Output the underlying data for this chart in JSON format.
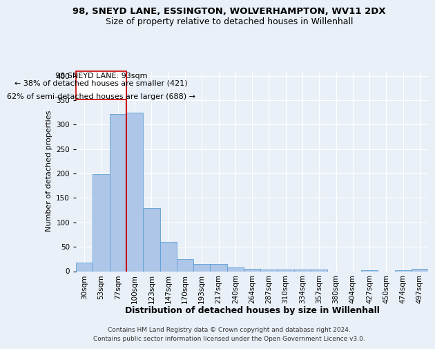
{
  "title1": "98, SNEYD LANE, ESSINGTON, WOLVERHAMPTON, WV11 2DX",
  "title2": "Size of property relative to detached houses in Willenhall",
  "xlabel": "Distribution of detached houses by size in Willenhall",
  "ylabel": "Number of detached properties",
  "bar_labels": [
    "30sqm",
    "53sqm",
    "77sqm",
    "100sqm",
    "123sqm",
    "147sqm",
    "170sqm",
    "193sqm",
    "217sqm",
    "240sqm",
    "264sqm",
    "287sqm",
    "310sqm",
    "334sqm",
    "357sqm",
    "380sqm",
    "404sqm",
    "427sqm",
    "450sqm",
    "474sqm",
    "497sqm"
  ],
  "bar_values": [
    17,
    198,
    321,
    325,
    129,
    60,
    25,
    15,
    15,
    8,
    5,
    4,
    4,
    4,
    3,
    0,
    0,
    2,
    0,
    2,
    5
  ],
  "bar_color": "#aec6e8",
  "bar_edgecolor": "#5a9fd4",
  "property_label": "98 SNEYD LANE: 93sqm",
  "annotation_line1": "← 38% of detached houses are smaller (421)",
  "annotation_line2": "62% of semi-detached houses are larger (688) →",
  "vline_x": 2.5,
  "ylim": [
    0,
    410
  ],
  "yticks": [
    0,
    50,
    100,
    150,
    200,
    250,
    300,
    350,
    400
  ],
  "footer_line1": "Contains HM Land Registry data © Crown copyright and database right 2024.",
  "footer_line2": "Contains public sector information licensed under the Open Government Licence v3.0.",
  "bg_color": "#eaf0f8",
  "plot_bg_color": "#eaf0f8",
  "grid_color": "#ffffff",
  "vline_color": "#cc0000"
}
